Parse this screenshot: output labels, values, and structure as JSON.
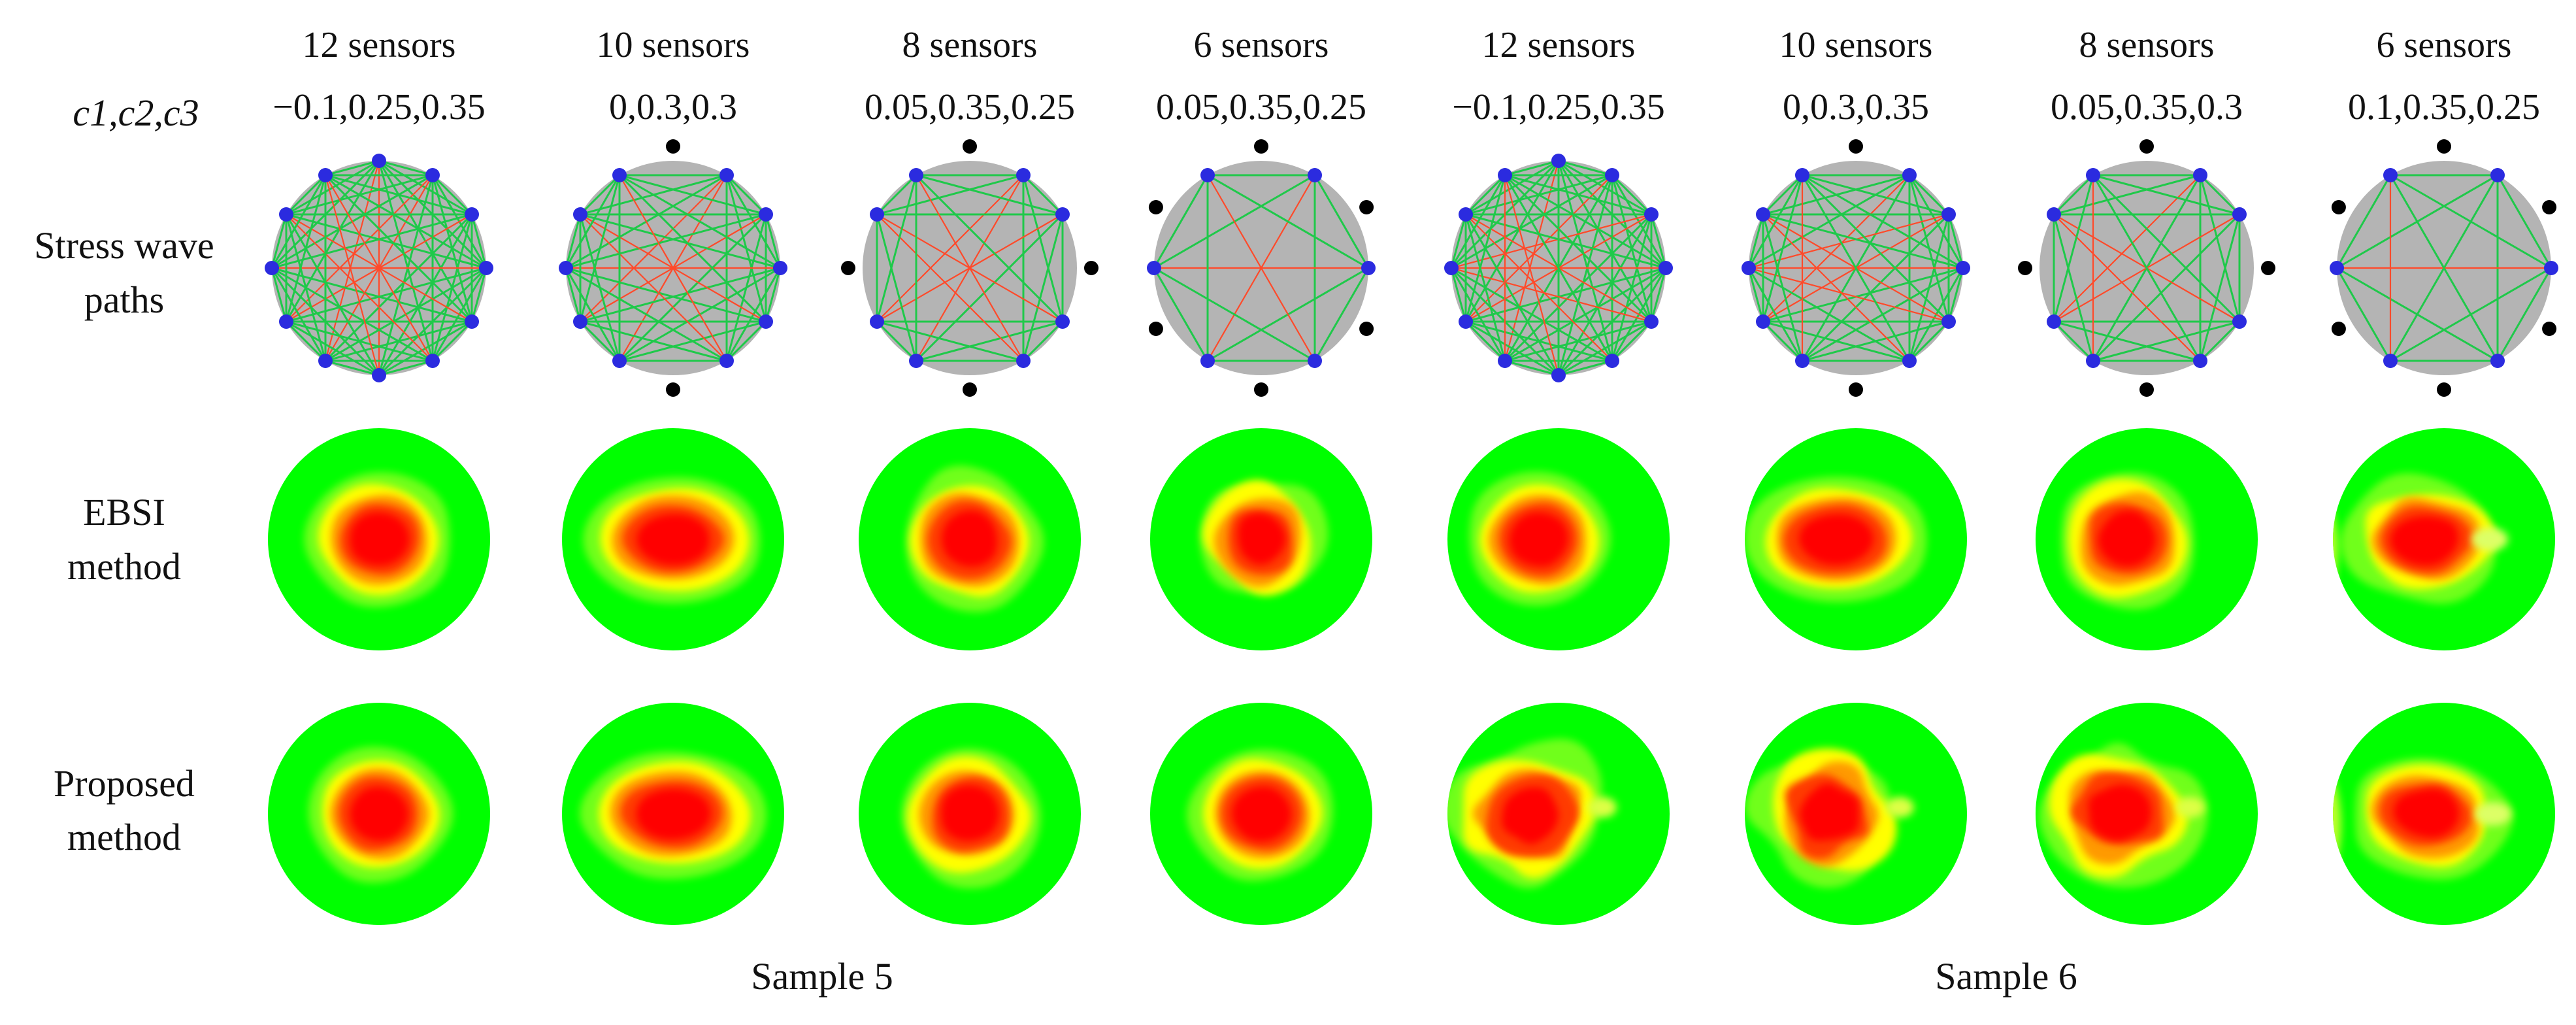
{
  "param_label": "c1,c2,c3",
  "row_labels": [
    [
      "Stress wave",
      "paths"
    ],
    [
      "EBSI",
      "method"
    ],
    [
      "Proposed",
      "method"
    ]
  ],
  "samples": [
    "Sample 5",
    "Sample 6"
  ],
  "columns": [
    {
      "sensors_label": "12 sensors",
      "params": "−0.1,0.25,0.35",
      "sensors": 12,
      "sample": 5,
      "ebsi_shape": "round",
      "proposed_shape": "round"
    },
    {
      "sensors_label": "10 sensors",
      "params": "0,0.3,0.3",
      "sensors": 10,
      "sample": 5,
      "ebsi_shape": "wide",
      "proposed_shape": "wide"
    },
    {
      "sensors_label": "8 sensors",
      "params": "0.05,0.35,0.25",
      "sensors": 8,
      "sample": 5,
      "ebsi_shape": "square",
      "proposed_shape": "square"
    },
    {
      "sensors_label": "6 sensors",
      "params": "0.05,0.35,0.25",
      "sensors": 6,
      "sample": 5,
      "ebsi_shape": "star",
      "proposed_shape": "round"
    },
    {
      "sensors_label": "12 sensors",
      "params": "−0.1,0.25,0.35",
      "sensors": 12,
      "sample": 6,
      "ebsi_shape": "round",
      "proposed_shape": "blob"
    },
    {
      "sensors_label": "10 sensors",
      "params": "0,0.3,0.35",
      "sensors": 10,
      "sample": 6,
      "ebsi_shape": "wide",
      "proposed_shape": "blob"
    },
    {
      "sensors_label": "8 sensors",
      "params": "0.05,0.35,0.3",
      "sensors": 8,
      "sample": 6,
      "ebsi_shape": "square",
      "proposed_shape": "blob"
    },
    {
      "sensors_label": "6 sensors",
      "params": "0.1,0.35,0.25",
      "sensors": 6,
      "sample": 6,
      "ebsi_shape": "edge",
      "proposed_shape": "edge"
    }
  ],
  "colors": {
    "disc_gray": "#b4b4b4",
    "active_sensor": "#2b2bdf",
    "inactive_sensor": "#000000",
    "healthy_path": "#1fc94a",
    "defect_path": "#ff4a2a",
    "healthy_area": "#00ff00",
    "defect_core": "#ff0000",
    "defect_halo": "#ffff00"
  }
}
